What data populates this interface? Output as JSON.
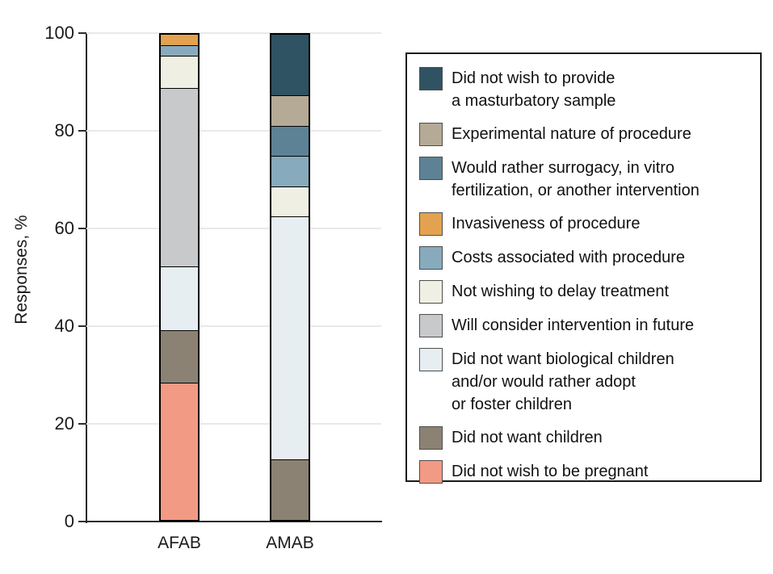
{
  "chart_data": {
    "type": "bar",
    "stacked": true,
    "title": "",
    "xlabel": "",
    "ylabel": "Responses, %",
    "ylim": [
      0,
      100
    ],
    "yticks": [
      0,
      20,
      40,
      60,
      80,
      100
    ],
    "grid": true,
    "legend_position": "right",
    "categories": [
      "AFAB",
      "AMAB"
    ],
    "series": [
      {
        "name": "Did not wish to provide\na masturbatory sample",
        "color": "#2f5363",
        "values": [
          0,
          12.5
        ]
      },
      {
        "name": "Experimental nature of procedure",
        "color": "#b4aa95",
        "values": [
          0,
          6.25
        ]
      },
      {
        "name": "Would rather surrogacy, in vitro\nfertilization, or another intervention",
        "color": "#5d8296",
        "values": [
          0,
          6.25
        ]
      },
      {
        "name": "Invasiveness of procedure",
        "color": "#e2a24f",
        "values": [
          2.2,
          0
        ]
      },
      {
        "name": "Costs associated with procedure",
        "color": "#87aabd",
        "values": [
          2.2,
          6.25
        ]
      },
      {
        "name": "Not wishing to delay treatment",
        "color": "#f0efe3",
        "values": [
          6.5,
          6.25
        ]
      },
      {
        "name": "Will consider intervention in future",
        "color": "#c8c9cb",
        "values": [
          36.8,
          0
        ]
      },
      {
        "name": "Did not want biological children\nand/or would rather adopt\nor foster children",
        "color": "#e7eef2",
        "values": [
          13.2,
          50
        ]
      },
      {
        "name": "Did not want children",
        "color": "#8b8274",
        "values": [
          10.8,
          12.5
        ]
      },
      {
        "name": "Did not wish to be pregnant",
        "color": "#f29a84",
        "values": [
          28.3,
          0
        ]
      }
    ]
  }
}
